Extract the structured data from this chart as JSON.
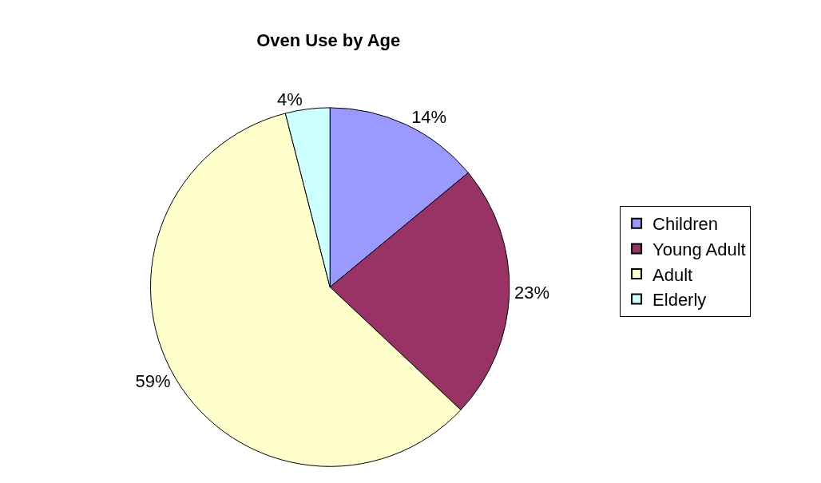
{
  "chart_data": {
    "type": "pie",
    "title": "Oven Use by Age",
    "categories": [
      "Children",
      "Young Adult",
      "Adult",
      "Elderly"
    ],
    "values": [
      14,
      23,
      59,
      4
    ],
    "colors": [
      "#9999ff",
      "#993366",
      "#ffffcc",
      "#ccffff"
    ],
    "value_labels": [
      "14%",
      "23%",
      "59%",
      "4%"
    ],
    "legend": "right"
  }
}
